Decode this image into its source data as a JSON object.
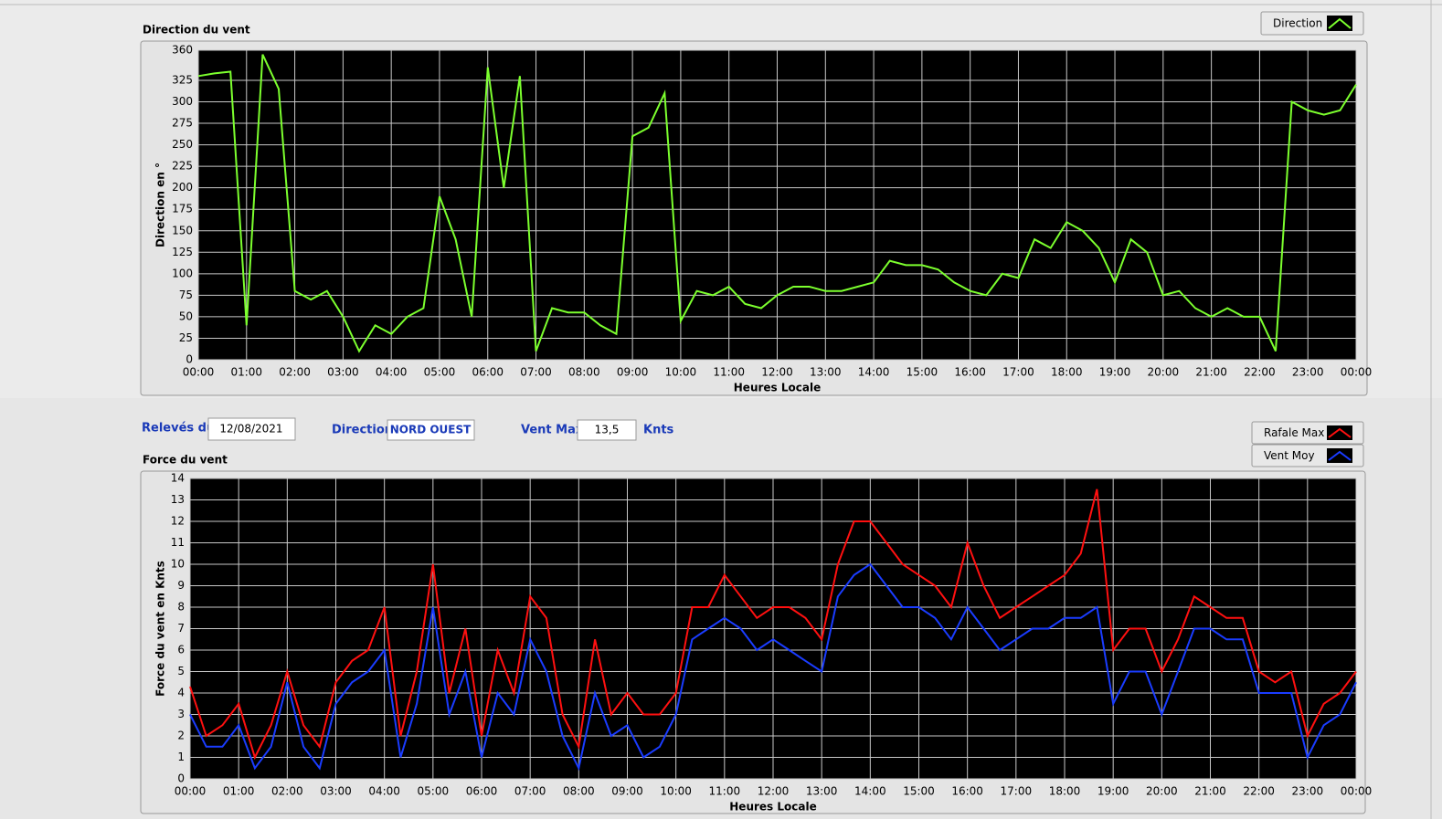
{
  "fields": {
    "date_label": "Relevés du",
    "date": "12/08/2021",
    "direction_label": "Direction",
    "direction": "NORD OUEST",
    "vmax_label": "Vent Max",
    "vmax": "13,5",
    "vmax_unit": "Knts"
  },
  "chart_data": [
    {
      "type": "line",
      "title": "Direction du vent",
      "xlabel": "Heures Locale",
      "ylabel": "Direction en °",
      "grid": true,
      "legend": "top-right",
      "x": [
        0,
        20,
        40,
        60,
        80,
        100,
        120,
        140,
        160,
        180,
        200,
        220,
        240,
        260,
        280,
        300,
        320,
        340,
        360,
        380,
        400,
        420,
        440,
        460,
        480,
        500,
        520,
        540,
        560,
        580,
        600,
        620,
        640,
        660,
        680,
        700,
        720,
        740,
        760,
        780,
        800,
        820,
        840,
        860,
        880,
        900,
        920,
        940,
        960,
        980,
        1000,
        1020,
        1040,
        1060,
        1080,
        1100,
        1120,
        1140,
        1160,
        1180,
        1200,
        1220,
        1240,
        1260,
        1280,
        1300,
        1320,
        1340,
        1360,
        1380,
        1400,
        1420,
        1440
      ],
      "xlim": [
        0,
        1440
      ],
      "xticks": [
        {
          "value": 0,
          "label": "00:00"
        },
        {
          "value": 60,
          "label": "01:00"
        },
        {
          "value": 120,
          "label": "02:00"
        },
        {
          "value": 180,
          "label": "03:00"
        },
        {
          "value": 240,
          "label": "04:00"
        },
        {
          "value": 300,
          "label": "05:00"
        },
        {
          "value": 360,
          "label": "06:00"
        },
        {
          "value": 420,
          "label": "07:00"
        },
        {
          "value": 480,
          "label": "08:00"
        },
        {
          "value": 540,
          "label": "09:00"
        },
        {
          "value": 600,
          "label": "10:00"
        },
        {
          "value": 660,
          "label": "11:00"
        },
        {
          "value": 720,
          "label": "12:00"
        },
        {
          "value": 780,
          "label": "13:00"
        },
        {
          "value": 840,
          "label": "14:00"
        },
        {
          "value": 900,
          "label": "15:00"
        },
        {
          "value": 960,
          "label": "16:00"
        },
        {
          "value": 1020,
          "label": "17:00"
        },
        {
          "value": 1080,
          "label": "18:00"
        },
        {
          "value": 1140,
          "label": "19:00"
        },
        {
          "value": 1200,
          "label": "20:00"
        },
        {
          "value": 1260,
          "label": "21:00"
        },
        {
          "value": 1320,
          "label": "22:00"
        },
        {
          "value": 1380,
          "label": "23:00"
        },
        {
          "value": 1440,
          "label": "00:00"
        }
      ],
      "ylim": [
        0,
        360
      ],
      "yticks": [
        0,
        25,
        50,
        75,
        100,
        125,
        150,
        175,
        200,
        225,
        250,
        275,
        300,
        325,
        360
      ],
      "series": [
        {
          "name": "Direction",
          "color": "#7cff2e",
          "values": [
            330,
            333,
            335,
            40,
            355,
            315,
            80,
            70,
            80,
            50,
            10,
            40,
            30,
            50,
            60,
            190,
            140,
            50,
            340,
            200,
            330,
            10,
            60,
            55,
            55,
            40,
            30,
            260,
            270,
            310,
            45,
            80,
            75,
            85,
            65,
            60,
            75,
            85,
            85,
            80,
            80,
            85,
            90,
            115,
            110,
            110,
            105,
            90,
            80,
            75,
            100,
            95,
            140,
            130,
            160,
            150,
            130,
            90,
            140,
            125,
            75,
            80,
            60,
            50,
            60,
            50,
            50,
            10,
            300,
            290,
            285,
            290,
            320
          ]
        }
      ]
    },
    {
      "type": "line",
      "title": "Force du vent",
      "xlabel": "Heures Locale",
      "ylabel": "Force du vent en Knts",
      "grid": true,
      "legend": "top-right",
      "x": [
        0,
        20,
        40,
        60,
        80,
        100,
        120,
        140,
        160,
        180,
        200,
        220,
        240,
        260,
        280,
        300,
        320,
        340,
        360,
        380,
        400,
        420,
        440,
        460,
        480,
        500,
        520,
        540,
        560,
        580,
        600,
        620,
        640,
        660,
        680,
        700,
        720,
        740,
        760,
        780,
        800,
        820,
        840,
        860,
        880,
        900,
        920,
        940,
        960,
        980,
        1000,
        1020,
        1040,
        1060,
        1080,
        1100,
        1120,
        1140,
        1160,
        1180,
        1200,
        1220,
        1240,
        1260,
        1280,
        1300,
        1320,
        1340,
        1360,
        1380,
        1400,
        1420,
        1440
      ],
      "xlim": [
        0,
        1440
      ],
      "xticks": [
        {
          "value": 0,
          "label": "00:00"
        },
        {
          "value": 60,
          "label": "01:00"
        },
        {
          "value": 120,
          "label": "02:00"
        },
        {
          "value": 180,
          "label": "03:00"
        },
        {
          "value": 240,
          "label": "04:00"
        },
        {
          "value": 300,
          "label": "05:00"
        },
        {
          "value": 360,
          "label": "06:00"
        },
        {
          "value": 420,
          "label": "07:00"
        },
        {
          "value": 480,
          "label": "08:00"
        },
        {
          "value": 540,
          "label": "09:00"
        },
        {
          "value": 600,
          "label": "10:00"
        },
        {
          "value": 660,
          "label": "11:00"
        },
        {
          "value": 720,
          "label": "12:00"
        },
        {
          "value": 780,
          "label": "13:00"
        },
        {
          "value": 840,
          "label": "14:00"
        },
        {
          "value": 900,
          "label": "15:00"
        },
        {
          "value": 960,
          "label": "16:00"
        },
        {
          "value": 1020,
          "label": "17:00"
        },
        {
          "value": 1080,
          "label": "18:00"
        },
        {
          "value": 1140,
          "label": "19:00"
        },
        {
          "value": 1200,
          "label": "20:00"
        },
        {
          "value": 1260,
          "label": "21:00"
        },
        {
          "value": 1320,
          "label": "22:00"
        },
        {
          "value": 1380,
          "label": "23:00"
        },
        {
          "value": 1440,
          "label": "00:00"
        }
      ],
      "ylim": [
        0,
        14
      ],
      "yticks": [
        0,
        1,
        2,
        3,
        4,
        5,
        6,
        7,
        8,
        9,
        10,
        11,
        12,
        13,
        14
      ],
      "series": [
        {
          "name": "Rafale Max",
          "color": "#ff1010",
          "values": [
            4.3,
            2,
            2.5,
            3.5,
            1,
            2.5,
            5,
            2.5,
            1.5,
            4.5,
            5.5,
            6,
            8,
            2,
            5,
            10,
            4,
            7,
            2,
            6,
            4,
            8.5,
            7.5,
            3,
            1.5,
            6.5,
            3,
            4,
            3,
            3,
            4,
            8,
            8,
            9.5,
            8.5,
            7.5,
            8,
            8,
            7.5,
            6.5,
            10,
            12,
            12,
            11,
            10,
            9.5,
            9,
            8,
            11,
            9,
            7.5,
            8,
            8.5,
            9,
            9.5,
            10.5,
            13.5,
            6,
            7,
            7,
            5,
            6.5,
            8.5,
            8,
            7.5,
            7.5,
            5,
            4.5,
            5,
            2,
            3.5,
            4,
            5
          ]
        },
        {
          "name": "Vent Moy",
          "color": "#1a3cff",
          "values": [
            3,
            1.5,
            1.5,
            2.5,
            0.5,
            1.5,
            4.5,
            1.5,
            0.5,
            3.5,
            4.5,
            5,
            6,
            1,
            3.5,
            8,
            3,
            5,
            1,
            4,
            3,
            6.5,
            5,
            2,
            0.5,
            4,
            2,
            2.5,
            1,
            1.5,
            3,
            6.5,
            7,
            7.5,
            7,
            6,
            6.5,
            6,
            5.5,
            5,
            8.5,
            9.5,
            10,
            9,
            8,
            8,
            7.5,
            6.5,
            8,
            7,
            6,
            6.5,
            7,
            7,
            7.5,
            7.5,
            8,
            3.5,
            5,
            5,
            3,
            5,
            7,
            7,
            6.5,
            6.5,
            4,
            4,
            4,
            1,
            2.5,
            3,
            4.5
          ]
        }
      ]
    }
  ]
}
